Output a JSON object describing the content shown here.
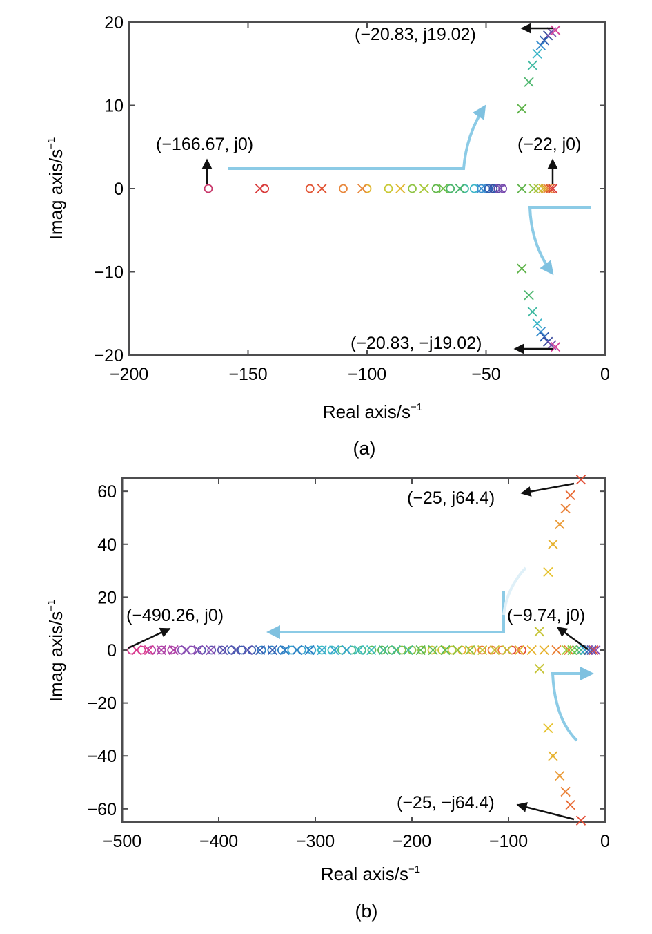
{
  "chart_data": [
    {
      "type": "scatter",
      "caption": "(a)",
      "xlabel": "Real axis/s",
      "ylabel": "Imag axis/s",
      "unit_exponent": "−1",
      "xlim": [
        -200,
        0
      ],
      "ylim": [
        -20,
        20
      ],
      "xticks": [
        -200,
        -150,
        -100,
        -50,
        0
      ],
      "xtick_labels": [
        "−200",
        "−150",
        "−100",
        "−50",
        "0"
      ],
      "yticks": [
        20,
        10,
        0,
        -10,
        -20
      ],
      "ytick_labels": [
        "20",
        "10",
        "0",
        "−10",
        "−20"
      ],
      "zeros": [
        {
          "x": -166.67,
          "y": 0,
          "c": "#c8376a"
        },
        {
          "x": -143,
          "y": 0,
          "c": "#d93a3a"
        },
        {
          "x": -124,
          "y": 0,
          "c": "#e25535"
        },
        {
          "x": -110,
          "y": 0,
          "c": "#e8863a"
        },
        {
          "x": -100,
          "y": 0,
          "c": "#e0b52c"
        },
        {
          "x": -91,
          "y": 0,
          "c": "#c8c833"
        },
        {
          "x": -81,
          "y": 0,
          "c": "#8fc444"
        },
        {
          "x": -71,
          "y": 0,
          "c": "#62b84a"
        },
        {
          "x": -65,
          "y": 0,
          "c": "#4cb66d"
        },
        {
          "x": -59,
          "y": 0,
          "c": "#3fb9a1"
        },
        {
          "x": -55,
          "y": 0,
          "c": "#3cb6c8"
        },
        {
          "x": -52,
          "y": 0,
          "c": "#3a8fcf"
        },
        {
          "x": -49,
          "y": 0,
          "c": "#2f5fb2"
        },
        {
          "x": -47,
          "y": 0,
          "c": "#3a4b9e"
        },
        {
          "x": -45,
          "y": 0,
          "c": "#5b4aa6"
        },
        {
          "x": -43,
          "y": 0,
          "c": "#7b4fb0"
        }
      ],
      "poles": [
        {
          "x": -145,
          "y": 0,
          "c": "#d93a3a"
        },
        {
          "x": -119,
          "y": 0,
          "c": "#e25535"
        },
        {
          "x": -102,
          "y": 0,
          "c": "#e8863a"
        },
        {
          "x": -86,
          "y": 0,
          "c": "#e0b52c"
        },
        {
          "x": -76,
          "y": 0,
          "c": "#a8c83a"
        },
        {
          "x": -68,
          "y": 0,
          "c": "#6cbf47"
        },
        {
          "x": -61,
          "y": 0,
          "c": "#4cb66d"
        },
        {
          "x": -52,
          "y": 0,
          "c": "#3a8fcf"
        },
        {
          "x": -48,
          "y": 0,
          "c": "#2f5fb2"
        },
        {
          "x": -44,
          "y": 0,
          "c": "#7b4fb0"
        },
        {
          "x": -35,
          "y": 0,
          "c": "#5fb34a"
        },
        {
          "x": -30,
          "y": 0,
          "c": "#8fc444"
        },
        {
          "x": -28,
          "y": 0,
          "c": "#b5c23a"
        },
        {
          "x": -26,
          "y": 0,
          "c": "#d6b830"
        },
        {
          "x": -25,
          "y": 0,
          "c": "#e0a52c"
        },
        {
          "x": -24,
          "y": 0,
          "c": "#e8863a"
        },
        {
          "x": -23,
          "y": 0,
          "c": "#e25535"
        },
        {
          "x": -22,
          "y": 0,
          "c": "#d93a3a"
        },
        {
          "x": -35,
          "y": 9.6,
          "c": "#5fb34a"
        },
        {
          "x": -32,
          "y": 12.8,
          "c": "#4cb66d"
        },
        {
          "x": -30.5,
          "y": 14.8,
          "c": "#3fb9a1"
        },
        {
          "x": -28.5,
          "y": 16.2,
          "c": "#3cb6c8"
        },
        {
          "x": -27,
          "y": 17.2,
          "c": "#3a8fcf"
        },
        {
          "x": -25.5,
          "y": 17.8,
          "c": "#2f5fb2"
        },
        {
          "x": -24,
          "y": 18.4,
          "c": "#3a4b9e"
        },
        {
          "x": -22.5,
          "y": 18.8,
          "c": "#7b4fb0"
        },
        {
          "x": -20.83,
          "y": 19.02,
          "c": "#d6449a"
        },
        {
          "x": -35,
          "y": -9.6,
          "c": "#5fb34a"
        },
        {
          "x": -32,
          "y": -12.8,
          "c": "#4cb66d"
        },
        {
          "x": -30.5,
          "y": -14.8,
          "c": "#3fb9a1"
        },
        {
          "x": -28.5,
          "y": -16.2,
          "c": "#3cb6c8"
        },
        {
          "x": -27,
          "y": -17.2,
          "c": "#3a8fcf"
        },
        {
          "x": -25.5,
          "y": -17.8,
          "c": "#2f5fb2"
        },
        {
          "x": -24,
          "y": -18.4,
          "c": "#3a4b9e"
        },
        {
          "x": -22.5,
          "y": -18.8,
          "c": "#7b4fb0"
        },
        {
          "x": -20.83,
          "y": -19.02,
          "c": "#d6449a"
        }
      ],
      "annotations": [
        {
          "text": "(−20.83, j19.02)"
        },
        {
          "text": "(−166.67, j0)"
        },
        {
          "text": "(−22, j0)"
        },
        {
          "text": "(−20.83, −j19.02)"
        }
      ]
    },
    {
      "type": "scatter",
      "caption": "(b)",
      "xlabel": "Real axis/s",
      "ylabel": "Imag axis/s",
      "unit_exponent": "−1",
      "xlim": [
        -500,
        0
      ],
      "ylim": [
        -65,
        65
      ],
      "xticks": [
        -500,
        -400,
        -300,
        -200,
        -100,
        0
      ],
      "xtick_labels": [
        "−500",
        "−400",
        "−300",
        "−200",
        "−100",
        "0"
      ],
      "yticks": [
        60,
        40,
        20,
        0,
        -20,
        -40,
        -60
      ],
      "ytick_labels": [
        "60",
        "40",
        "20",
        "0",
        "−20",
        "−40",
        "−60"
      ],
      "zero_markers": {
        "count": 40,
        "from": -490.26,
        "to": -86
      },
      "pole_markers": {
        "count": 38,
        "from": -485,
        "to": -12
      },
      "palette": [
        "#d93a8f",
        "#b044a8",
        "#8a4fb3",
        "#5c55b0",
        "#3a5fb2",
        "#2f7fc4",
        "#39a6cf",
        "#3cbcc0",
        "#45bb8f",
        "#5cbb57",
        "#8ac23f",
        "#c6c436",
        "#e6b22d",
        "#ea8036",
        "#e24c34"
      ],
      "near_origin_poles": [
        {
          "x": -40,
          "y": 0,
          "c": "#9ad03a"
        },
        {
          "x": -34,
          "y": 0,
          "c": "#7fcc44"
        },
        {
          "x": -29,
          "y": 0,
          "c": "#5cbf57"
        },
        {
          "x": -25,
          "y": 0,
          "c": "#45bb8f"
        },
        {
          "x": -21,
          "y": 0,
          "c": "#39a6cf"
        },
        {
          "x": -17,
          "y": 0,
          "c": "#3a5fb2"
        },
        {
          "x": -14,
          "y": 0,
          "c": "#5c55b0"
        },
        {
          "x": -9.74,
          "y": 0,
          "c": "#8a4fb3"
        }
      ],
      "poles": [
        {
          "x": -68,
          "y": 7,
          "c": "#c6c436"
        },
        {
          "x": -59,
          "y": 29.5,
          "c": "#e6c22d"
        },
        {
          "x": -54,
          "y": 40,
          "c": "#e6b22d"
        },
        {
          "x": -47,
          "y": 47.5,
          "c": "#ea9a36"
        },
        {
          "x": -41,
          "y": 53.5,
          "c": "#ea8036"
        },
        {
          "x": -36,
          "y": 58.5,
          "c": "#e86a34"
        },
        {
          "x": -25,
          "y": 64.4,
          "c": "#e24c34"
        },
        {
          "x": -68,
          "y": -7,
          "c": "#c6c436"
        },
        {
          "x": -59,
          "y": -29.5,
          "c": "#e6c22d"
        },
        {
          "x": -54,
          "y": -40,
          "c": "#e6b22d"
        },
        {
          "x": -47,
          "y": -47.5,
          "c": "#ea9a36"
        },
        {
          "x": -41,
          "y": -53.5,
          "c": "#ea8036"
        },
        {
          "x": -36,
          "y": -58.5,
          "c": "#e86a34"
        },
        {
          "x": -25,
          "y": -64.4,
          "c": "#e24c34"
        }
      ],
      "annotations": [
        {
          "text": "(−25, j64.4)"
        },
        {
          "text": "(−490.26, j0)"
        },
        {
          "text": "(−9.74, j0)"
        },
        {
          "text": "(−25, −j64.4)"
        }
      ]
    }
  ]
}
